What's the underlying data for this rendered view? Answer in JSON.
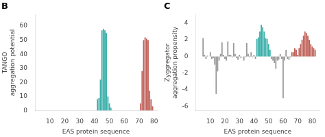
{
  "chart_data": [
    {
      "type": "bar",
      "title": "B",
      "x": [
        42,
        43,
        44,
        45,
        46,
        47,
        48,
        49,
        50,
        51,
        71,
        72,
        73,
        74,
        75,
        76,
        77,
        78,
        79
      ],
      "values": [
        8,
        9,
        22,
        57,
        58,
        57,
        55,
        10,
        5,
        2,
        5,
        28,
        50,
        52,
        51,
        50,
        14,
        8,
        3
      ],
      "colors": [
        "#3aafa9",
        "#3aafa9",
        "#3aafa9",
        "#3aafa9",
        "#3aafa9",
        "#3aafa9",
        "#3aafa9",
        "#3aafa9",
        "#3aafa9",
        "#3aafa9",
        "#c0635a",
        "#c0635a",
        "#c0635a",
        "#c0635a",
        "#c0635a",
        "#c0635a",
        "#c0635a",
        "#c0635a",
        "#c0635a"
      ],
      "xlabel": "EAS protein sequence",
      "ylabel": "TANGO\naggregation potential",
      "xlim": [
        0,
        82
      ],
      "ylim": [
        0,
        68
      ],
      "xticks": [
        10,
        20,
        30,
        40,
        50,
        60,
        70,
        80
      ],
      "yticks": [
        0,
        10,
        20,
        30,
        40,
        50,
        60
      ],
      "grid": false
    },
    {
      "type": "bar",
      "title": "C",
      "x": [
        5,
        6,
        7,
        8,
        9,
        10,
        11,
        12,
        13,
        14,
        15,
        16,
        17,
        18,
        19,
        20,
        21,
        22,
        23,
        24,
        25,
        26,
        27,
        28,
        29,
        30,
        31,
        32,
        33,
        34,
        35,
        36,
        37,
        38,
        39,
        40,
        41,
        42,
        43,
        44,
        45,
        46,
        47,
        48,
        49,
        50,
        51,
        52,
        53,
        54,
        55,
        56,
        57,
        58,
        59,
        60,
        61,
        62,
        63,
        64,
        65,
        66,
        67,
        68,
        69,
        70,
        71,
        72,
        73,
        74,
        75,
        76,
        77,
        78,
        79,
        80,
        81,
        82
      ],
      "values": [
        2.2,
        0.2,
        -0.3,
        0.1,
        0.0,
        0.5,
        -0.3,
        -0.2,
        -1.0,
        -4.5,
        -1.8,
        -0.5,
        0.3,
        1.7,
        0.2,
        -0.3,
        -0.5,
        1.8,
        0.2,
        0.2,
        -0.1,
        1.6,
        0.3,
        -0.2,
        -0.4,
        0.2,
        -0.2,
        0.0,
        -0.5,
        -0.1,
        1.6,
        0.3,
        -0.1,
        0.5,
        -0.1,
        0.2,
        -0.3,
        2.1,
        2.3,
        3.0,
        3.8,
        3.5,
        3.0,
        2.2,
        2.1,
        1.5,
        0.8,
        -0.3,
        -0.5,
        -0.8,
        -1.5,
        -0.5,
        -0.4,
        0.3,
        -0.3,
        -5.0,
        -0.5,
        0.8,
        -0.3,
        -0.4,
        -0.1,
        0.5,
        0.5,
        1.0,
        0.8,
        0.2,
        1.0,
        1.5,
        2.0,
        2.5,
        3.0,
        2.8,
        2.5,
        2.0,
        1.5,
        1.2,
        1.0,
        0.8
      ],
      "colors": [
        "#999999",
        "#999999",
        "#999999",
        "#999999",
        "#999999",
        "#999999",
        "#999999",
        "#999999",
        "#999999",
        "#999999",
        "#999999",
        "#999999",
        "#999999",
        "#999999",
        "#999999",
        "#999999",
        "#999999",
        "#999999",
        "#999999",
        "#999999",
        "#999999",
        "#999999",
        "#999999",
        "#999999",
        "#999999",
        "#999999",
        "#999999",
        "#999999",
        "#999999",
        "#999999",
        "#999999",
        "#999999",
        "#999999",
        "#999999",
        "#999999",
        "#999999",
        "#999999",
        "#3aafa9",
        "#3aafa9",
        "#3aafa9",
        "#3aafa9",
        "#3aafa9",
        "#3aafa9",
        "#3aafa9",
        "#3aafa9",
        "#3aafa9",
        "#3aafa9",
        "#999999",
        "#999999",
        "#999999",
        "#999999",
        "#999999",
        "#999999",
        "#999999",
        "#999999",
        "#999999",
        "#999999",
        "#999999",
        "#999999",
        "#999999",
        "#999999",
        "#c0635a",
        "#c0635a",
        "#c0635a",
        "#c0635a",
        "#c0635a",
        "#c0635a",
        "#c0635a",
        "#c0635a",
        "#c0635a",
        "#c0635a",
        "#c0635a",
        "#c0635a",
        "#c0635a",
        "#c0635a",
        "#c0635a",
        "#c0635a",
        "#c0635a"
      ],
      "xlabel": "EAS protein sequence",
      "ylabel": "Zyggregator\naggregation propensity",
      "xlim": [
        0,
        85
      ],
      "ylim": [
        -6.5,
        5
      ],
      "xticks": [
        10,
        20,
        30,
        40,
        50,
        60,
        70,
        80
      ],
      "yticks": [
        -6,
        -4,
        -2,
        0,
        2,
        4
      ],
      "grid": false
    }
  ]
}
